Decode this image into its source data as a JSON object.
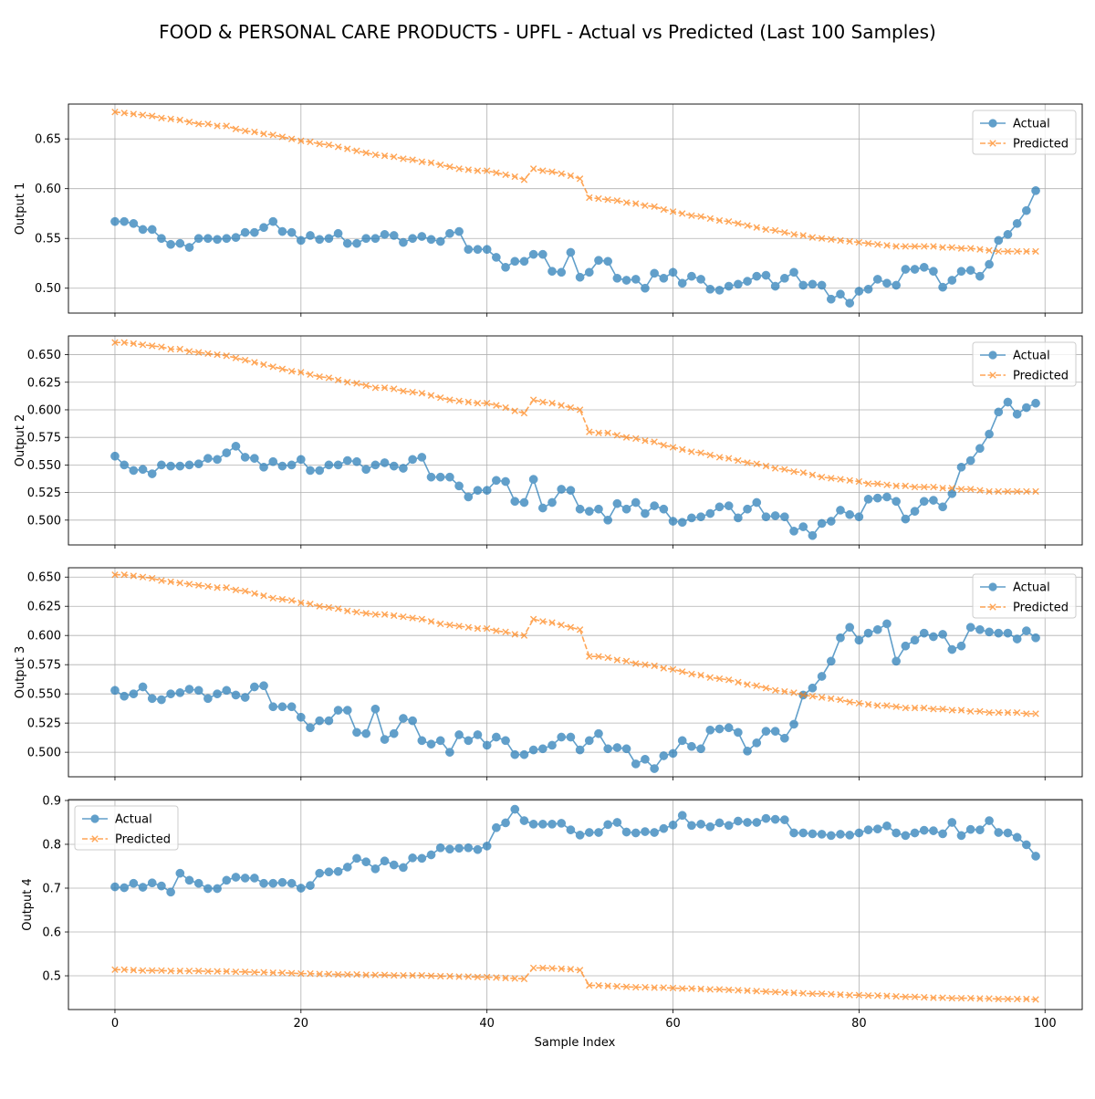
{
  "figure": {
    "title": "FOOD & PERSONAL CARE PRODUCTS - UPFL - Actual vs Predicted (Last 100 Samples)",
    "xlabel": "Sample Index"
  },
  "colors": {
    "actual": "#1f77b4",
    "predicted": "#ff7f0e",
    "grid": "#b0b0b0",
    "axes": "#000000"
  },
  "chart_data": [
    {
      "type": "line",
      "ylabel": "Output 1",
      "xlim": [
        -5,
        104
      ],
      "ylim": [
        0.475,
        0.685
      ],
      "yticks": [
        "0.50",
        "0.55",
        "0.60",
        "0.65"
      ],
      "xticks": [
        0,
        20,
        40,
        60,
        80,
        100
      ],
      "show_xtick_labels": false,
      "grid": true,
      "legend": "top-right",
      "series": [
        {
          "name": "Actual",
          "marker": "circle",
          "linestyle": "solid",
          "values": [
            0.567,
            0.567,
            0.565,
            0.559,
            0.559,
            0.55,
            0.544,
            0.545,
            0.541,
            0.55,
            0.55,
            0.549,
            0.55,
            0.551,
            0.556,
            0.556,
            0.561,
            0.567,
            0.557,
            0.556,
            0.548,
            0.553,
            0.549,
            0.55,
            0.555,
            0.545,
            0.545,
            0.55,
            0.55,
            0.554,
            0.553,
            0.546,
            0.55,
            0.552,
            0.549,
            0.547,
            0.555,
            0.557,
            0.539,
            0.539,
            0.539,
            0.531,
            0.521,
            0.527,
            0.527,
            0.534,
            0.534,
            0.517,
            0.516,
            0.536,
            0.511,
            0.516,
            0.528,
            0.527,
            0.51,
            0.508,
            0.509,
            0.5,
            0.515,
            0.51,
            0.516,
            0.505,
            0.512,
            0.509,
            0.499,
            0.498,
            0.502,
            0.504,
            0.507,
            0.512,
            0.513,
            0.502,
            0.51,
            0.516,
            0.503,
            0.504,
            0.503,
            0.489,
            0.494,
            0.485,
            0.497,
            0.499,
            0.509,
            0.505,
            0.503,
            0.519,
            0.519,
            0.521,
            0.517,
            0.501,
            0.508,
            0.517,
            0.518,
            0.512,
            0.524,
            0.548,
            0.554,
            0.565,
            0.578,
            0.598
          ]
        },
        {
          "name": "Predicted",
          "marker": "x",
          "linestyle": "dashed",
          "values": [
            0.677,
            0.676,
            0.675,
            0.674,
            0.673,
            0.671,
            0.67,
            0.669,
            0.667,
            0.665,
            0.665,
            0.663,
            0.663,
            0.66,
            0.658,
            0.657,
            0.655,
            0.654,
            0.652,
            0.65,
            0.648,
            0.647,
            0.645,
            0.644,
            0.642,
            0.64,
            0.638,
            0.636,
            0.634,
            0.633,
            0.632,
            0.63,
            0.629,
            0.627,
            0.626,
            0.624,
            0.622,
            0.62,
            0.619,
            0.618,
            0.618,
            0.616,
            0.614,
            0.612,
            0.609,
            0.62,
            0.618,
            0.617,
            0.615,
            0.613,
            0.61,
            0.591,
            0.59,
            0.589,
            0.588,
            0.586,
            0.585,
            0.583,
            0.582,
            0.579,
            0.577,
            0.575,
            0.573,
            0.572,
            0.57,
            0.568,
            0.567,
            0.565,
            0.563,
            0.561,
            0.559,
            0.558,
            0.556,
            0.554,
            0.553,
            0.551,
            0.55,
            0.549,
            0.548,
            0.547,
            0.546,
            0.545,
            0.544,
            0.543,
            0.542,
            0.542,
            0.542,
            0.542,
            0.542,
            0.541,
            0.541,
            0.54,
            0.54,
            0.539,
            0.538,
            0.537,
            0.537,
            0.537,
            0.537,
            0.537
          ]
        }
      ]
    },
    {
      "type": "line",
      "ylabel": "Output 2",
      "xlim": [
        -5,
        104
      ],
      "ylim": [
        0.4775,
        0.667
      ],
      "yticks": [
        "0.500",
        "0.525",
        "0.550",
        "0.575",
        "0.600",
        "0.625",
        "0.650"
      ],
      "xticks": [
        0,
        20,
        40,
        60,
        80,
        100
      ],
      "show_xtick_labels": false,
      "grid": true,
      "legend": "top-right",
      "series": [
        {
          "name": "Actual",
          "marker": "circle",
          "linestyle": "solid",
          "values": [
            0.558,
            0.55,
            0.545,
            0.546,
            0.542,
            0.55,
            0.549,
            0.549,
            0.55,
            0.551,
            0.556,
            0.555,
            0.561,
            0.567,
            0.557,
            0.556,
            0.548,
            0.553,
            0.549,
            0.55,
            0.555,
            0.545,
            0.545,
            0.55,
            0.55,
            0.554,
            0.553,
            0.546,
            0.55,
            0.552,
            0.549,
            0.547,
            0.555,
            0.557,
            0.539,
            0.539,
            0.539,
            0.531,
            0.521,
            0.527,
            0.527,
            0.536,
            0.535,
            0.517,
            0.516,
            0.537,
            0.511,
            0.516,
            0.528,
            0.527,
            0.51,
            0.508,
            0.51,
            0.5,
            0.515,
            0.51,
            0.516,
            0.506,
            0.513,
            0.51,
            0.499,
            0.498,
            0.502,
            0.503,
            0.506,
            0.512,
            0.513,
            0.502,
            0.51,
            0.516,
            0.503,
            0.504,
            0.503,
            0.49,
            0.494,
            0.486,
            0.497,
            0.499,
            0.509,
            0.505,
            0.503,
            0.519,
            0.52,
            0.521,
            0.517,
            0.501,
            0.508,
            0.517,
            0.518,
            0.512,
            0.524,
            0.548,
            0.554,
            0.565,
            0.578,
            0.598,
            0.607,
            0.596,
            0.602,
            0.606
          ]
        },
        {
          "name": "Predicted",
          "marker": "x",
          "linestyle": "dashed",
          "values": [
            0.661,
            0.661,
            0.66,
            0.659,
            0.658,
            0.657,
            0.655,
            0.655,
            0.653,
            0.652,
            0.651,
            0.65,
            0.649,
            0.647,
            0.645,
            0.643,
            0.641,
            0.639,
            0.637,
            0.635,
            0.634,
            0.632,
            0.63,
            0.629,
            0.627,
            0.625,
            0.624,
            0.622,
            0.62,
            0.62,
            0.619,
            0.617,
            0.616,
            0.615,
            0.613,
            0.611,
            0.609,
            0.608,
            0.607,
            0.606,
            0.606,
            0.604,
            0.602,
            0.599,
            0.597,
            0.609,
            0.607,
            0.606,
            0.604,
            0.602,
            0.6,
            0.58,
            0.579,
            0.579,
            0.577,
            0.575,
            0.574,
            0.572,
            0.571,
            0.568,
            0.566,
            0.564,
            0.562,
            0.561,
            0.559,
            0.557,
            0.556,
            0.554,
            0.552,
            0.551,
            0.549,
            0.547,
            0.546,
            0.544,
            0.543,
            0.541,
            0.539,
            0.538,
            0.537,
            0.536,
            0.535,
            0.533,
            0.533,
            0.532,
            0.531,
            0.531,
            0.53,
            0.53,
            0.53,
            0.529,
            0.529,
            0.528,
            0.528,
            0.527,
            0.526,
            0.526,
            0.526,
            0.526,
            0.526,
            0.526
          ]
        }
      ]
    },
    {
      "type": "line",
      "ylabel": "Output 3",
      "xlim": [
        -5,
        104
      ],
      "ylim": [
        0.479,
        0.658
      ],
      "yticks": [
        "0.500",
        "0.525",
        "0.550",
        "0.575",
        "0.600",
        "0.625",
        "0.650"
      ],
      "xticks": [
        0,
        20,
        40,
        60,
        80,
        100
      ],
      "show_xtick_labels": false,
      "grid": true,
      "legend": "top-right",
      "series": [
        {
          "name": "Actual",
          "marker": "circle",
          "linestyle": "solid",
          "values": [
            0.553,
            0.548,
            0.55,
            0.556,
            0.546,
            0.545,
            0.55,
            0.551,
            0.554,
            0.553,
            0.546,
            0.55,
            0.553,
            0.549,
            0.547,
            0.556,
            0.557,
            0.539,
            0.539,
            0.539,
            0.53,
            0.521,
            0.527,
            0.527,
            0.536,
            0.536,
            0.517,
            0.516,
            0.537,
            0.511,
            0.516,
            0.529,
            0.527,
            0.51,
            0.507,
            0.51,
            0.5,
            0.515,
            0.51,
            0.515,
            0.506,
            0.513,
            0.51,
            0.498,
            0.498,
            0.502,
            0.503,
            0.506,
            0.513,
            0.513,
            0.502,
            0.51,
            0.516,
            0.503,
            0.504,
            0.503,
            0.49,
            0.494,
            0.486,
            0.497,
            0.499,
            0.51,
            0.505,
            0.503,
            0.519,
            0.52,
            0.521,
            0.517,
            0.501,
            0.508,
            0.518,
            0.518,
            0.512,
            0.524,
            0.549,
            0.555,
            0.565,
            0.578,
            0.598,
            0.607,
            0.596,
            0.602,
            0.605,
            0.61,
            0.578,
            0.591,
            0.596,
            0.602,
            0.599,
            0.601,
            0.588,
            0.591,
            0.607,
            0.605,
            0.603,
            0.602,
            0.602,
            0.597,
            0.604,
            0.598
          ]
        },
        {
          "name": "Predicted",
          "marker": "x",
          "linestyle": "dashed",
          "values": [
            0.652,
            0.652,
            0.651,
            0.65,
            0.649,
            0.647,
            0.646,
            0.645,
            0.644,
            0.643,
            0.642,
            0.641,
            0.641,
            0.639,
            0.638,
            0.636,
            0.634,
            0.632,
            0.631,
            0.63,
            0.628,
            0.627,
            0.625,
            0.624,
            0.623,
            0.621,
            0.62,
            0.619,
            0.618,
            0.618,
            0.617,
            0.616,
            0.615,
            0.614,
            0.612,
            0.61,
            0.609,
            0.608,
            0.607,
            0.606,
            0.606,
            0.604,
            0.603,
            0.601,
            0.6,
            0.614,
            0.612,
            0.611,
            0.609,
            0.607,
            0.605,
            0.582,
            0.582,
            0.581,
            0.579,
            0.578,
            0.576,
            0.575,
            0.574,
            0.572,
            0.571,
            0.569,
            0.567,
            0.566,
            0.564,
            0.563,
            0.562,
            0.56,
            0.558,
            0.557,
            0.555,
            0.553,
            0.552,
            0.551,
            0.549,
            0.548,
            0.547,
            0.546,
            0.545,
            0.543,
            0.542,
            0.541,
            0.54,
            0.54,
            0.539,
            0.538,
            0.538,
            0.538,
            0.537,
            0.537,
            0.536,
            0.536,
            0.535,
            0.535,
            0.534,
            0.534,
            0.534,
            0.534,
            0.533,
            0.533
          ]
        }
      ]
    },
    {
      "type": "line",
      "ylabel": "Output 4",
      "xlim": [
        -5,
        104
      ],
      "ylim": [
        0.423,
        0.902
      ],
      "yticks": [
        "0.5",
        "0.6",
        "0.7",
        "0.8",
        "0.9"
      ],
      "xticks": [
        0,
        20,
        40,
        60,
        80,
        100
      ],
      "show_xtick_labels": true,
      "grid": true,
      "legend": "top-left",
      "series": [
        {
          "name": "Actual",
          "marker": "circle",
          "linestyle": "solid",
          "values": [
            0.703,
            0.701,
            0.711,
            0.702,
            0.712,
            0.705,
            0.691,
            0.734,
            0.718,
            0.711,
            0.699,
            0.699,
            0.718,
            0.725,
            0.723,
            0.723,
            0.711,
            0.711,
            0.713,
            0.711,
            0.7,
            0.706,
            0.734,
            0.737,
            0.738,
            0.748,
            0.768,
            0.76,
            0.744,
            0.762,
            0.753,
            0.747,
            0.769,
            0.768,
            0.776,
            0.792,
            0.789,
            0.791,
            0.792,
            0.788,
            0.796,
            0.838,
            0.849,
            0.88,
            0.854,
            0.846,
            0.846,
            0.846,
            0.848,
            0.833,
            0.821,
            0.827,
            0.827,
            0.845,
            0.85,
            0.828,
            0.826,
            0.829,
            0.827,
            0.836,
            0.844,
            0.866,
            0.843,
            0.846,
            0.84,
            0.849,
            0.843,
            0.853,
            0.85,
            0.85,
            0.859,
            0.857,
            0.856,
            0.826,
            0.826,
            0.824,
            0.823,
            0.82,
            0.823,
            0.821,
            0.826,
            0.833,
            0.835,
            0.842,
            0.826,
            0.82,
            0.826,
            0.832,
            0.831,
            0.824,
            0.85,
            0.82,
            0.834,
            0.833,
            0.854,
            0.827,
            0.826,
            0.816,
            0.799,
            0.773
          ]
        },
        {
          "name": "Predicted",
          "marker": "x",
          "linestyle": "dashed",
          "values": [
            0.514,
            0.514,
            0.513,
            0.512,
            0.512,
            0.512,
            0.511,
            0.511,
            0.511,
            0.511,
            0.51,
            0.51,
            0.51,
            0.509,
            0.509,
            0.508,
            0.508,
            0.507,
            0.507,
            0.506,
            0.505,
            0.505,
            0.504,
            0.504,
            0.503,
            0.503,
            0.503,
            0.502,
            0.502,
            0.502,
            0.501,
            0.501,
            0.501,
            0.501,
            0.5,
            0.499,
            0.499,
            0.498,
            0.498,
            0.497,
            0.497,
            0.496,
            0.495,
            0.494,
            0.493,
            0.518,
            0.518,
            0.517,
            0.516,
            0.515,
            0.513,
            0.478,
            0.478,
            0.477,
            0.476,
            0.475,
            0.474,
            0.474,
            0.473,
            0.473,
            0.472,
            0.471,
            0.471,
            0.47,
            0.469,
            0.469,
            0.468,
            0.467,
            0.466,
            0.465,
            0.464,
            0.463,
            0.462,
            0.461,
            0.46,
            0.459,
            0.459,
            0.458,
            0.457,
            0.456,
            0.456,
            0.455,
            0.455,
            0.454,
            0.453,
            0.452,
            0.452,
            0.451,
            0.45,
            0.45,
            0.449,
            0.449,
            0.449,
            0.448,
            0.448,
            0.447,
            0.447,
            0.447,
            0.447,
            0.446
          ]
        }
      ]
    }
  ]
}
